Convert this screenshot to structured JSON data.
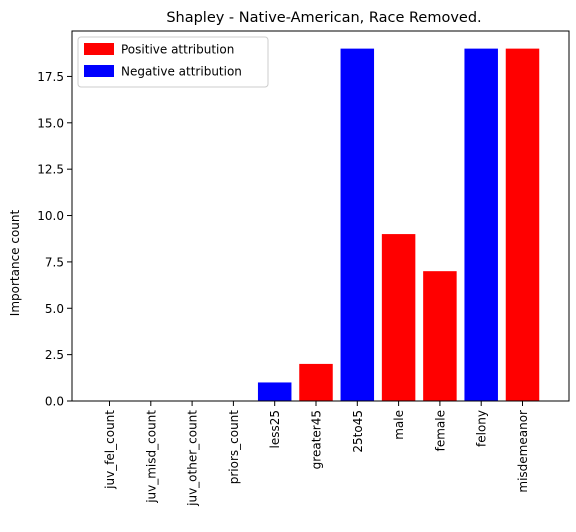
{
  "chart_data": {
    "type": "bar",
    "title": "Shapley - Native-American, Race Removed.",
    "xlabel": "",
    "ylabel": "Importance count",
    "categories": [
      "juv_fel_count",
      "juv_misd_count",
      "juv_other_count",
      "priors_count",
      "less25",
      "greater45",
      "25to45",
      "male",
      "female",
      "felony",
      "misdemeanor"
    ],
    "values": [
      0,
      0,
      0,
      0,
      1,
      2,
      19,
      9,
      7,
      19,
      19
    ],
    "bar_attribution": [
      "positive",
      "positive",
      "positive",
      "positive",
      "negative",
      "positive",
      "negative",
      "positive",
      "positive",
      "negative",
      "positive"
    ],
    "ylim": [
      0,
      19.95
    ],
    "yticks": [
      0.0,
      2.5,
      5.0,
      7.5,
      10.0,
      12.5,
      15.0,
      17.5
    ],
    "ytick_labels": [
      "0.0",
      "2.5",
      "5.0",
      "7.5",
      "10.0",
      "12.5",
      "15.0",
      "17.5"
    ],
    "grid": false,
    "legend": {
      "placement": "top-left",
      "entries": [
        {
          "key": "positive",
          "label": "Positive attribution",
          "color": "#ff0000"
        },
        {
          "key": "negative",
          "label": "Negative attribution",
          "color": "#0000ff"
        }
      ]
    }
  }
}
